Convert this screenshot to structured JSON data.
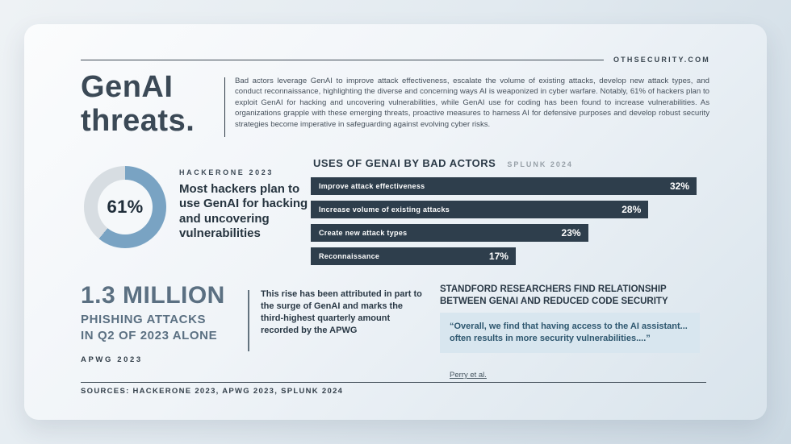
{
  "colors": {
    "accent": "#79a3c3",
    "ring": "#d7dde2",
    "bar": "#2e3e4c",
    "ink": "#3b4956",
    "slate": "#5b7082",
    "quote_bg": "#d8e6ef",
    "quote_text": "#2d566e"
  },
  "header": {
    "site": "OTHSECURITY.COM",
    "title_line1": "GenAI",
    "title_line2": "threats.",
    "intro": "Bad actors leverage GenAI to improve attack effectiveness, escalate the volume of existing attacks, develop new attack types, and conduct reconnaissance, highlighting the diverse and concerning ways AI is weaponized in cyber warfare. Notably, 61% of hackers plan to exploit GenAI for hacking and uncovering vulnerabilities, while GenAI use for coding has been found to increase vulnerabilities. As organizations grapple with these emerging threats, proactive measures to harness AI for defensive purposes and develop robust security strategies become imperative in safeguarding against evolving cyber risks."
  },
  "donut_section": {
    "source": "HACKERONE 2023",
    "center_label": "61%",
    "caption": "Most hackers plan to use GenAI for hacking and uncovering vulnerabilities"
  },
  "uses_section": {
    "title": "USES OF GENAI BY BAD ACTORS",
    "source": "SPLUNK 2024"
  },
  "phishing_section": {
    "headline": "1.3 MILLION",
    "line2": "PHISHING ATTACKS",
    "line3": "IN Q2 OF 2023 ALONE",
    "source": "APWG 2023",
    "note": "This rise has been attributed in part to the surge of GenAI and marks the third-highest quarterly amount recorded by the APWG"
  },
  "stanford_section": {
    "heading": "STANDFORD RESEARCHERS FIND RELATIONSHIP BETWEEN GENAI AND REDUCED CODE SECURITY",
    "quote": "“Overall, we find that having access to the AI assistant... often results in more security vulnerabilities....”",
    "citation": "Perry et al."
  },
  "footer": {
    "sources": "SOURCES: HACKERONE 2023, APWG 2023, SPLUNK 2024"
  },
  "chart_data": [
    {
      "type": "pie",
      "subtype": "donut",
      "title": "Most hackers plan to use GenAI for hacking and uncovering vulnerabilities",
      "source": "HACKERONE 2023",
      "labels": [
        "Hackers planning to use GenAI for hacking and uncovering vulnerabilities",
        "Other"
      ],
      "values": [
        61,
        39
      ],
      "center_label": "61%",
      "colors": [
        "#79a3c3",
        "#d7dde2"
      ]
    },
    {
      "type": "bar",
      "orientation": "horizontal",
      "title": "USES OF GENAI BY BAD ACTORS",
      "source": "SPLUNK 2024",
      "categories": [
        "Improve attack effectiveness",
        "Increase volume of existing attacks",
        "Create new attack types",
        "Reconnaissance"
      ],
      "values": [
        32,
        28,
        23,
        17
      ],
      "value_labels": [
        "32%",
        "28%",
        "23%",
        "17%"
      ],
      "xlim": [
        0,
        32
      ],
      "grid": false,
      "legend": false
    }
  ]
}
